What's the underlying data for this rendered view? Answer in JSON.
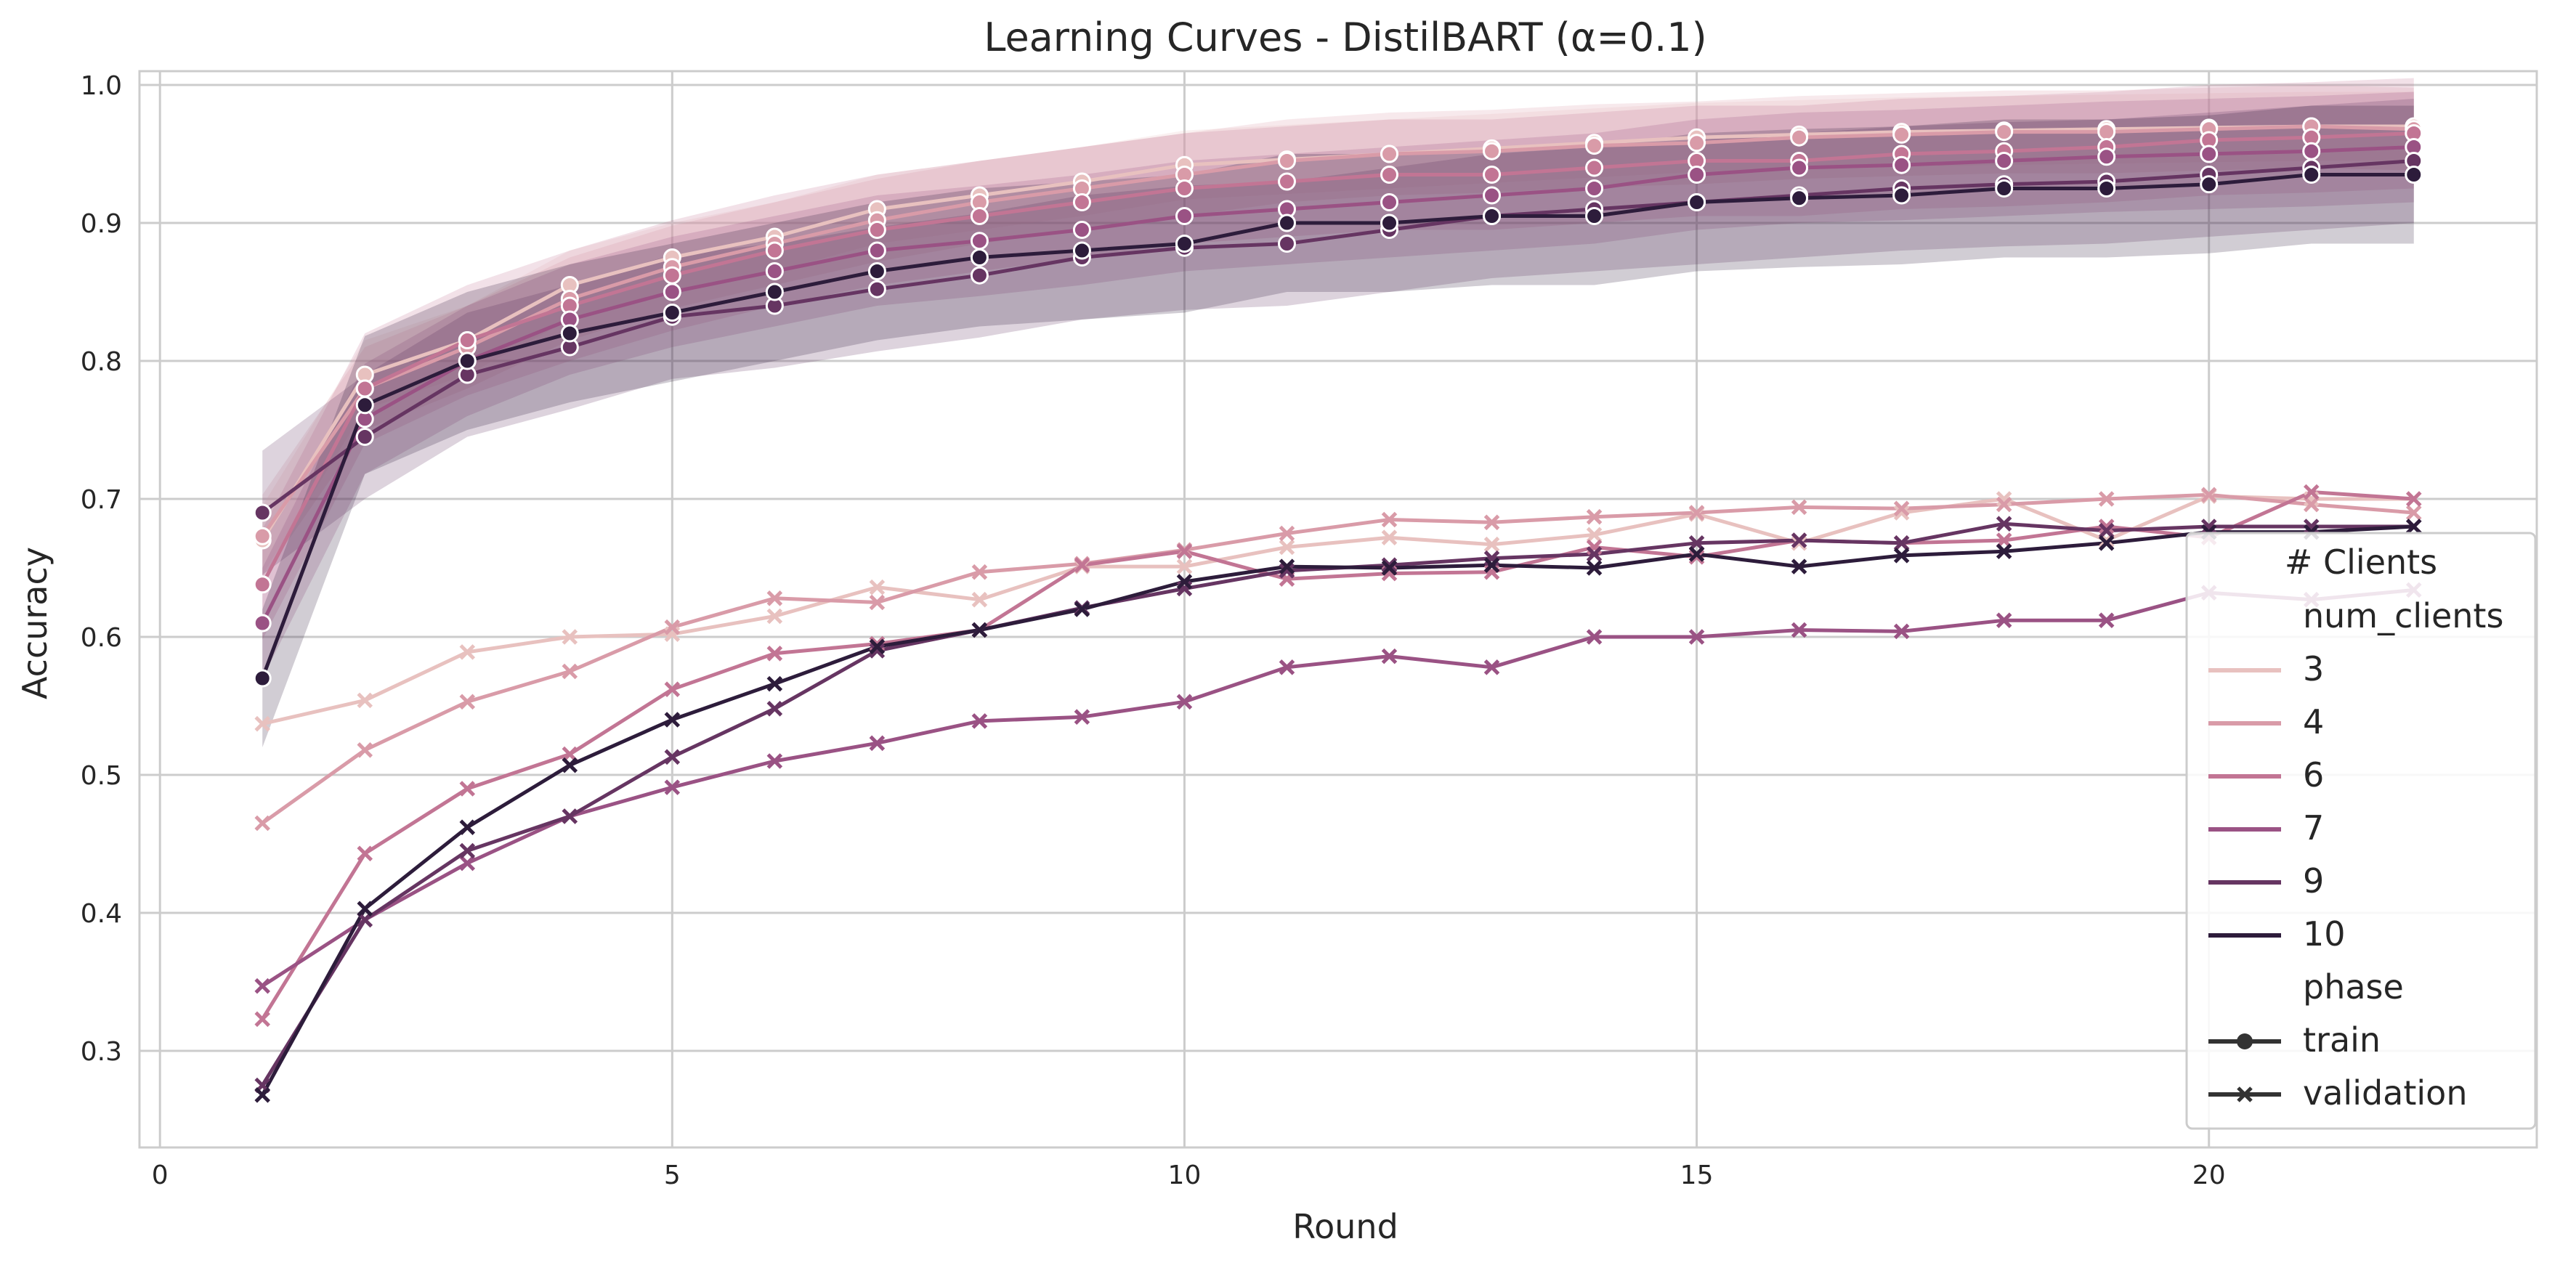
{
  "chart_data": {
    "type": "line",
    "title": "Learning Curves - DistilBART (α=0.1)",
    "xlabel": "Round",
    "ylabel": "Accuracy",
    "xlim": [
      -0.2,
      23.2
    ],
    "ylim": [
      0.23,
      1.01
    ],
    "xticks": [
      0,
      5,
      10,
      15,
      20
    ],
    "yticks": [
      0.3,
      0.4,
      0.5,
      0.6,
      0.7,
      0.8,
      0.9,
      1.0
    ],
    "grid": true,
    "legend": {
      "title": "# Clients",
      "hue_label": "num_clients",
      "style_label": "phase",
      "placement": "right"
    },
    "colors": {
      "3": "#e8c1bf",
      "4": "#d99ba8",
      "6": "#c27594",
      "7": "#9a5284",
      "9": "#663562",
      "10": "#2d1c3b"
    },
    "x": [
      1,
      2,
      3,
      4,
      5,
      6,
      7,
      8,
      9,
      10,
      11,
      12,
      13,
      14,
      15,
      16,
      17,
      18,
      19,
      20,
      21,
      22
    ],
    "series": [
      {
        "name": "3",
        "phase": "train",
        "values": [
          0.67,
          0.79,
          0.815,
          0.855,
          0.875,
          0.89,
          0.91,
          0.92,
          0.93,
          0.942,
          0.946,
          0.95,
          0.954,
          0.958,
          0.962,
          0.964,
          0.966,
          0.967,
          0.968,
          0.969,
          0.97,
          0.97
        ],
        "band": 0.025
      },
      {
        "name": "3",
        "phase": "validation",
        "values": [
          0.537,
          0.554,
          0.589,
          0.6,
          0.602,
          0.615,
          0.636,
          0.627,
          0.651,
          0.651,
          0.665,
          0.672,
          0.667,
          0.674,
          0.689,
          0.668,
          0.69,
          0.7,
          0.67,
          0.702,
          0.7,
          0.7
        ]
      },
      {
        "name": "4",
        "phase": "train",
        "values": [
          0.673,
          0.78,
          0.81,
          0.845,
          0.868,
          0.885,
          0.902,
          0.915,
          0.925,
          0.935,
          0.945,
          0.95,
          0.952,
          0.956,
          0.958,
          0.962,
          0.964,
          0.966,
          0.966,
          0.968,
          0.97,
          0.968
        ],
        "band": 0.03
      },
      {
        "name": "4",
        "phase": "validation",
        "values": [
          0.465,
          0.518,
          0.553,
          0.575,
          0.607,
          0.628,
          0.625,
          0.647,
          0.653,
          0.663,
          0.675,
          0.685,
          0.683,
          0.687,
          0.69,
          0.694,
          0.693,
          0.696,
          0.7,
          0.703,
          0.696,
          0.69
        ]
      },
      {
        "name": "6",
        "phase": "train",
        "values": [
          0.638,
          0.78,
          0.815,
          0.84,
          0.862,
          0.88,
          0.895,
          0.905,
          0.915,
          0.925,
          0.93,
          0.935,
          0.935,
          0.94,
          0.945,
          0.945,
          0.95,
          0.952,
          0.955,
          0.96,
          0.962,
          0.965
        ],
        "band": 0.04
      },
      {
        "name": "6",
        "phase": "validation",
        "values": [
          0.323,
          0.443,
          0.49,
          0.515,
          0.562,
          0.588,
          0.595,
          0.605,
          0.652,
          0.662,
          0.642,
          0.646,
          0.647,
          0.665,
          0.658,
          0.67,
          0.668,
          0.67,
          0.68,
          0.672,
          0.705,
          0.7
        ]
      },
      {
        "name": "7",
        "phase": "train",
        "values": [
          0.61,
          0.758,
          0.8,
          0.83,
          0.85,
          0.865,
          0.88,
          0.887,
          0.895,
          0.905,
          0.91,
          0.915,
          0.92,
          0.925,
          0.935,
          0.94,
          0.942,
          0.945,
          0.948,
          0.95,
          0.952,
          0.955
        ],
        "band": 0.04
      },
      {
        "name": "7",
        "phase": "validation",
        "values": [
          0.347,
          0.395,
          0.436,
          0.47,
          0.491,
          0.51,
          0.523,
          0.539,
          0.542,
          0.553,
          0.578,
          0.586,
          0.578,
          0.6,
          0.6,
          0.605,
          0.604,
          0.612,
          0.612,
          0.632,
          0.627,
          0.634
        ]
      },
      {
        "name": "9",
        "phase": "train",
        "values": [
          0.69,
          0.745,
          0.79,
          0.81,
          0.832,
          0.84,
          0.852,
          0.862,
          0.875,
          0.882,
          0.885,
          0.895,
          0.905,
          0.91,
          0.915,
          0.92,
          0.925,
          0.928,
          0.93,
          0.935,
          0.94,
          0.945
        ],
        "band": 0.045
      },
      {
        "name": "9",
        "phase": "validation",
        "values": [
          0.275,
          0.395,
          0.445,
          0.47,
          0.513,
          0.548,
          0.59,
          0.605,
          0.621,
          0.635,
          0.648,
          0.652,
          0.657,
          0.66,
          0.668,
          0.67,
          0.668,
          0.682,
          0.677,
          0.68,
          0.68,
          0.68
        ]
      },
      {
        "name": "10",
        "phase": "train",
        "values": [
          0.57,
          0.768,
          0.8,
          0.82,
          0.835,
          0.85,
          0.865,
          0.875,
          0.88,
          0.885,
          0.9,
          0.9,
          0.905,
          0.905,
          0.915,
          0.918,
          0.92,
          0.925,
          0.925,
          0.928,
          0.935,
          0.935
        ],
        "band": 0.05
      },
      {
        "name": "10",
        "phase": "validation",
        "values": [
          0.268,
          0.403,
          0.462,
          0.507,
          0.54,
          0.566,
          0.593,
          0.605,
          0.62,
          0.64,
          0.651,
          0.65,
          0.652,
          0.65,
          0.66,
          0.651,
          0.659,
          0.662,
          0.668,
          0.676,
          0.676,
          0.68
        ]
      }
    ]
  }
}
